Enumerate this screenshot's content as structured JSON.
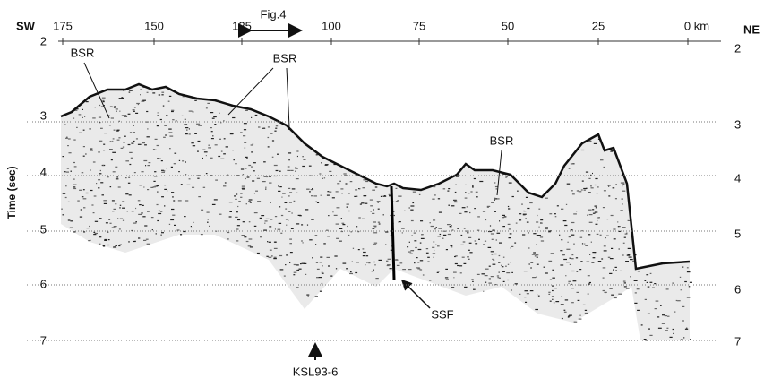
{
  "figure": {
    "sw_label": "SW",
    "ne_label": "NE",
    "fig_ref": "Fig.4",
    "y_axis_title": "Time (sec)",
    "top_axis_labels": [
      "175",
      "150",
      "125",
      "100",
      "75",
      "50",
      "25",
      "0 km"
    ],
    "left_axis_labels": [
      "2",
      "3",
      "4",
      "5",
      "6",
      "7"
    ],
    "right_axis_labels": [
      "2",
      "3",
      "4",
      "5",
      "6",
      "7"
    ],
    "annotations": {
      "bsr_1": "BSR",
      "bsr_2": "BSR",
      "bsr_3": "BSR",
      "ssf": "SSF",
      "ksl": "KSL93-6"
    }
  }
}
